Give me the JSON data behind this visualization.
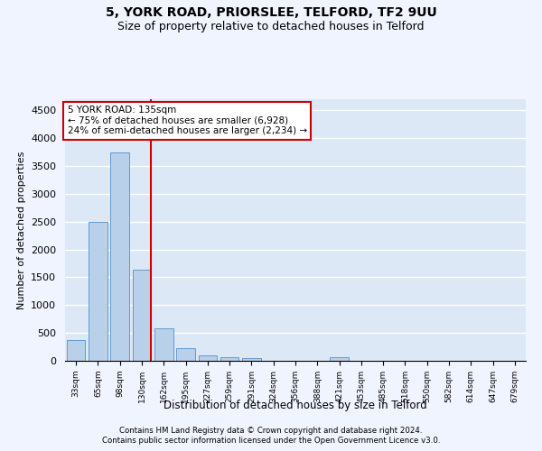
{
  "title1": "5, YORK ROAD, PRIORSLEE, TELFORD, TF2 9UU",
  "title2": "Size of property relative to detached houses in Telford",
  "xlabel": "Distribution of detached houses by size in Telford",
  "ylabel": "Number of detached properties",
  "categories": [
    "33sqm",
    "65sqm",
    "98sqm",
    "130sqm",
    "162sqm",
    "195sqm",
    "227sqm",
    "259sqm",
    "291sqm",
    "324sqm",
    "356sqm",
    "388sqm",
    "421sqm",
    "453sqm",
    "485sqm",
    "518sqm",
    "550sqm",
    "582sqm",
    "614sqm",
    "647sqm",
    "679sqm"
  ],
  "values": [
    370,
    2500,
    3750,
    1640,
    590,
    230,
    105,
    60,
    45,
    0,
    0,
    0,
    60,
    0,
    0,
    0,
    0,
    0,
    0,
    0,
    0
  ],
  "bar_color": "#b8d0ea",
  "bar_edge_color": "#6699cc",
  "vline_color": "#cc0000",
  "annotation_text": "5 YORK ROAD: 135sqm\n← 75% of detached houses are smaller (6,928)\n24% of semi-detached houses are larger (2,234) →",
  "annotation_box_color": "#ffffff",
  "annotation_box_edge_color": "#cc0000",
  "ylim": [
    0,
    4700
  ],
  "yticks": [
    0,
    500,
    1000,
    1500,
    2000,
    2500,
    3000,
    3500,
    4000,
    4500
  ],
  "footnote1": "Contains HM Land Registry data © Crown copyright and database right 2024.",
  "footnote2": "Contains public sector information licensed under the Open Government Licence v3.0.",
  "background_color": "#dce8f5",
  "plot_bg_color": "#dce8f5",
  "grid_color": "#ffffff",
  "title1_fontsize": 10,
  "title2_fontsize": 9,
  "fig_bg_color": "#f0f4ff"
}
